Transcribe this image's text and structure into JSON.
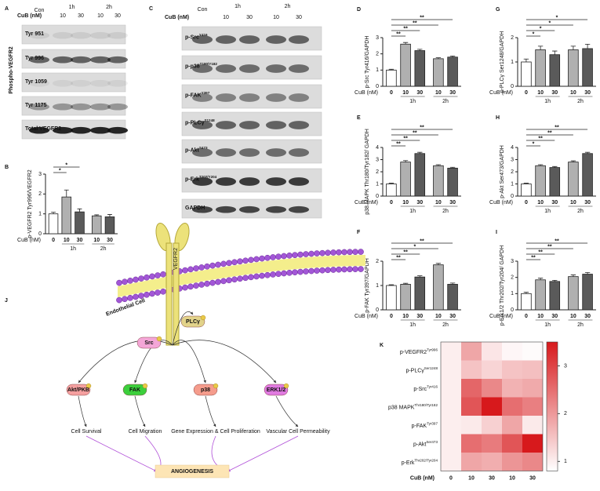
{
  "blots": [
    {
      "label": "A",
      "x_label": "CuB (nM)",
      "control": "Con",
      "times": [
        "1h",
        "2h"
      ],
      "lanes": [
        "10",
        "30",
        "10",
        "30"
      ],
      "side_label": "Phospho-VEGFR2",
      "rows": [
        {
          "name": "Tyr 951"
        },
        {
          "name": "Tyr 996"
        },
        {
          "name": "Tyr 1059"
        },
        {
          "name": "Tyr 1175"
        },
        {
          "name": "Total VEGFR2"
        }
      ]
    },
    {
      "label": "C",
      "x_label": "CuB (nM)",
      "control": "Con",
      "times": [
        "1h",
        "2h"
      ],
      "lanes": [
        "10",
        "30",
        "10",
        "30"
      ],
      "rows": [
        {
          "name": "p-Src",
          "site": "Y416"
        },
        {
          "name": "p-p38",
          "site": "T180/Y182"
        },
        {
          "name": "p-FAK",
          "site": "Y397"
        },
        {
          "name": "p-PLCγ",
          "site": "S1248"
        },
        {
          "name": "p-Akt",
          "site": "S473"
        },
        {
          "name": "p-Erk",
          "site": "T202/Y204"
        },
        {
          "name": "GAPDH"
        }
      ]
    }
  ],
  "chart_data": [
    {
      "type": "bar",
      "label": "B",
      "y_label": "p-VEGFR2 Tyr996/VEGFR2",
      "x_label": "CuB (nM)",
      "categories": [
        "0",
        "10",
        "30",
        "10",
        "30"
      ],
      "groups": [
        "1h",
        "2h"
      ],
      "values": [
        1,
        1.85,
        1.1,
        0.9,
        0.85
      ],
      "errors": [
        0.08,
        0.35,
        0.15,
        0.05,
        0.12
      ],
      "colors": [
        "#ffffff",
        "#b0b0b0",
        "#5a5a5a",
        "#b0b0b0",
        "#5a5a5a"
      ],
      "ylim": [
        0,
        3
      ],
      "yticks": [
        0,
        1,
        2,
        3
      ],
      "significance": [
        "*",
        "*"
      ]
    },
    {
      "type": "bar",
      "label": "D",
      "y_label": "p-Src Tyr416/GAPDH",
      "x_label": "CuB (nM)",
      "categories": [
        "0",
        "10",
        "30",
        "10",
        "30"
      ],
      "groups": [
        "1h",
        "2h"
      ],
      "values": [
        1,
        2.6,
        2.2,
        1.7,
        1.8
      ],
      "errors": [
        0.05,
        0.1,
        0.08,
        0.06,
        0.07
      ],
      "colors": [
        "#ffffff",
        "#b0b0b0",
        "#5a5a5a",
        "#b0b0b0",
        "#5a5a5a"
      ],
      "ylim": [
        0,
        3
      ],
      "yticks": [
        0,
        1,
        2,
        3
      ],
      "significance": [
        "**",
        "**",
        "**",
        "**"
      ]
    },
    {
      "type": "bar",
      "label": "E",
      "y_label": "p38 MAPK Thr180/Tyr182/ GAPDH",
      "x_label": "CuB (nM)",
      "categories": [
        "0",
        "10",
        "30",
        "10",
        "30"
      ],
      "groups": [
        "1h",
        "2h"
      ],
      "values": [
        1,
        2.8,
        3.5,
        2.5,
        2.3
      ],
      "errors": [
        0.06,
        0.12,
        0.1,
        0.08,
        0.07
      ],
      "colors": [
        "#ffffff",
        "#b0b0b0",
        "#5a5a5a",
        "#b0b0b0",
        "#5a5a5a"
      ],
      "ylim": [
        0,
        4
      ],
      "yticks": [
        0,
        1,
        2,
        3,
        4
      ],
      "significance": [
        "**",
        "**",
        "**",
        "**"
      ]
    },
    {
      "type": "bar",
      "label": "F",
      "y_label": "p-FAK Tyr397/GAPDH",
      "x_label": "CuB (nM)",
      "categories": [
        "0",
        "10",
        "30",
        "10",
        "30"
      ],
      "groups": [
        "1h",
        "2h"
      ],
      "values": [
        1,
        1.05,
        1.35,
        1.85,
        1.05
      ],
      "errors": [
        0.03,
        0.04,
        0.05,
        0.06,
        0.05
      ],
      "colors": [
        "#ffffff",
        "#b0b0b0",
        "#5a5a5a",
        "#b0b0b0",
        "#5a5a5a"
      ],
      "ylim": [
        0,
        2
      ],
      "yticks": [
        0,
        1,
        2
      ],
      "significance": [
        "**",
        "**",
        "*",
        "**"
      ]
    },
    {
      "type": "bar",
      "label": "G",
      "y_label": "p-PLCγ Ser1248/GAPDH",
      "x_label": "CuB (nM)",
      "categories": [
        "0",
        "10",
        "30",
        "10",
        "30"
      ],
      "groups": [
        "1h",
        "2h"
      ],
      "values": [
        1,
        1.5,
        1.3,
        1.5,
        1.55
      ],
      "errors": [
        0.12,
        0.15,
        0.15,
        0.15,
        0.18
      ],
      "colors": [
        "#ffffff",
        "#b0b0b0",
        "#5a5a5a",
        "#b0b0b0",
        "#5a5a5a"
      ],
      "ylim": [
        0,
        2
      ],
      "yticks": [
        0,
        1,
        2
      ],
      "significance": [
        "*",
        "*",
        "*",
        "*"
      ]
    },
    {
      "type": "bar",
      "label": "H",
      "y_label": "p-Akt Ser473/GAPDH",
      "x_label": "CuB (nM)",
      "categories": [
        "0",
        "10",
        "30",
        "10",
        "30"
      ],
      "groups": [
        "1h",
        "2h"
      ],
      "values": [
        1,
        2.5,
        2.35,
        2.8,
        3.5
      ],
      "errors": [
        0.06,
        0.08,
        0.08,
        0.1,
        0.1
      ],
      "colors": [
        "#ffffff",
        "#b0b0b0",
        "#5a5a5a",
        "#b0b0b0",
        "#5a5a5a"
      ],
      "ylim": [
        0,
        4
      ],
      "yticks": [
        0,
        1,
        2,
        3,
        4
      ],
      "significance": [
        "*",
        "**",
        "**",
        "**"
      ]
    },
    {
      "type": "bar",
      "label": "I",
      "y_label": "p-Erk1/2 Thr202/Tyr204/ GAPDH",
      "x_label": "CuB (nM)",
      "categories": [
        "0",
        "10",
        "30",
        "10",
        "30"
      ],
      "groups": [
        "1h",
        "2h"
      ],
      "values": [
        1,
        1.85,
        1.75,
        2.05,
        2.2
      ],
      "errors": [
        0.08,
        0.1,
        0.07,
        0.1,
        0.1
      ],
      "colors": [
        "#ffffff",
        "#b0b0b0",
        "#5a5a5a",
        "#b0b0b0",
        "#5a5a5a"
      ],
      "ylim": [
        0,
        3
      ],
      "yticks": [
        0,
        1,
        2,
        3
      ],
      "significance": [
        "**",
        "**",
        "**",
        "**"
      ]
    },
    {
      "type": "heatmap",
      "label": "K",
      "x_label": "CuB (nM)",
      "columns": [
        "0",
        "10",
        "30",
        "10",
        "30"
      ],
      "rows": [
        {
          "name": "p-VEGFR2",
          "site": "Tyr996"
        },
        {
          "name": "p-PLCγ",
          "site": "Ser1248"
        },
        {
          "name": "p-Src",
          "site": "Tyr416"
        },
        {
          "name": "p38 MAPK",
          "site": "Thr180/Tyr182"
        },
        {
          "name": "p-FAK",
          "site": "Tyr397"
        },
        {
          "name": "p-Akt",
          "site": "Ser473"
        },
        {
          "name": "p-Erk",
          "site": "Thr202/Tyr204"
        }
      ],
      "values": [
        [
          1,
          1.85,
          1.1,
          0.9,
          0.85
        ],
        [
          1,
          1.5,
          1.3,
          1.5,
          1.55
        ],
        [
          1,
          2.6,
          2.2,
          1.7,
          1.8
        ],
        [
          1,
          2.8,
          3.5,
          2.5,
          2.3
        ],
        [
          1,
          1.05,
          1.35,
          1.85,
          1.05
        ],
        [
          1,
          2.5,
          2.35,
          2.8,
          3.5
        ],
        [
          1,
          1.85,
          1.75,
          2.05,
          2.2
        ]
      ],
      "zlim": [
        0.8,
        3.5
      ],
      "zticks": [
        1,
        2,
        3
      ],
      "colors": [
        "#ffffff",
        "#d7191c"
      ]
    }
  ],
  "diagram": {
    "label": "J",
    "membrane_label": "Endothelial Cell",
    "receptor": "VEGFR2",
    "nodes": [
      "Src",
      "PLCγ",
      "Akt/PKB",
      "FAK",
      "p38",
      "ERK1/2"
    ],
    "outcomes": [
      "Cell Survival",
      "Cell Migration",
      "Gene Expression & Cell Proliferation",
      "Vascular Cell Permeability"
    ],
    "endpoint": "ANGIOGENESIS"
  }
}
